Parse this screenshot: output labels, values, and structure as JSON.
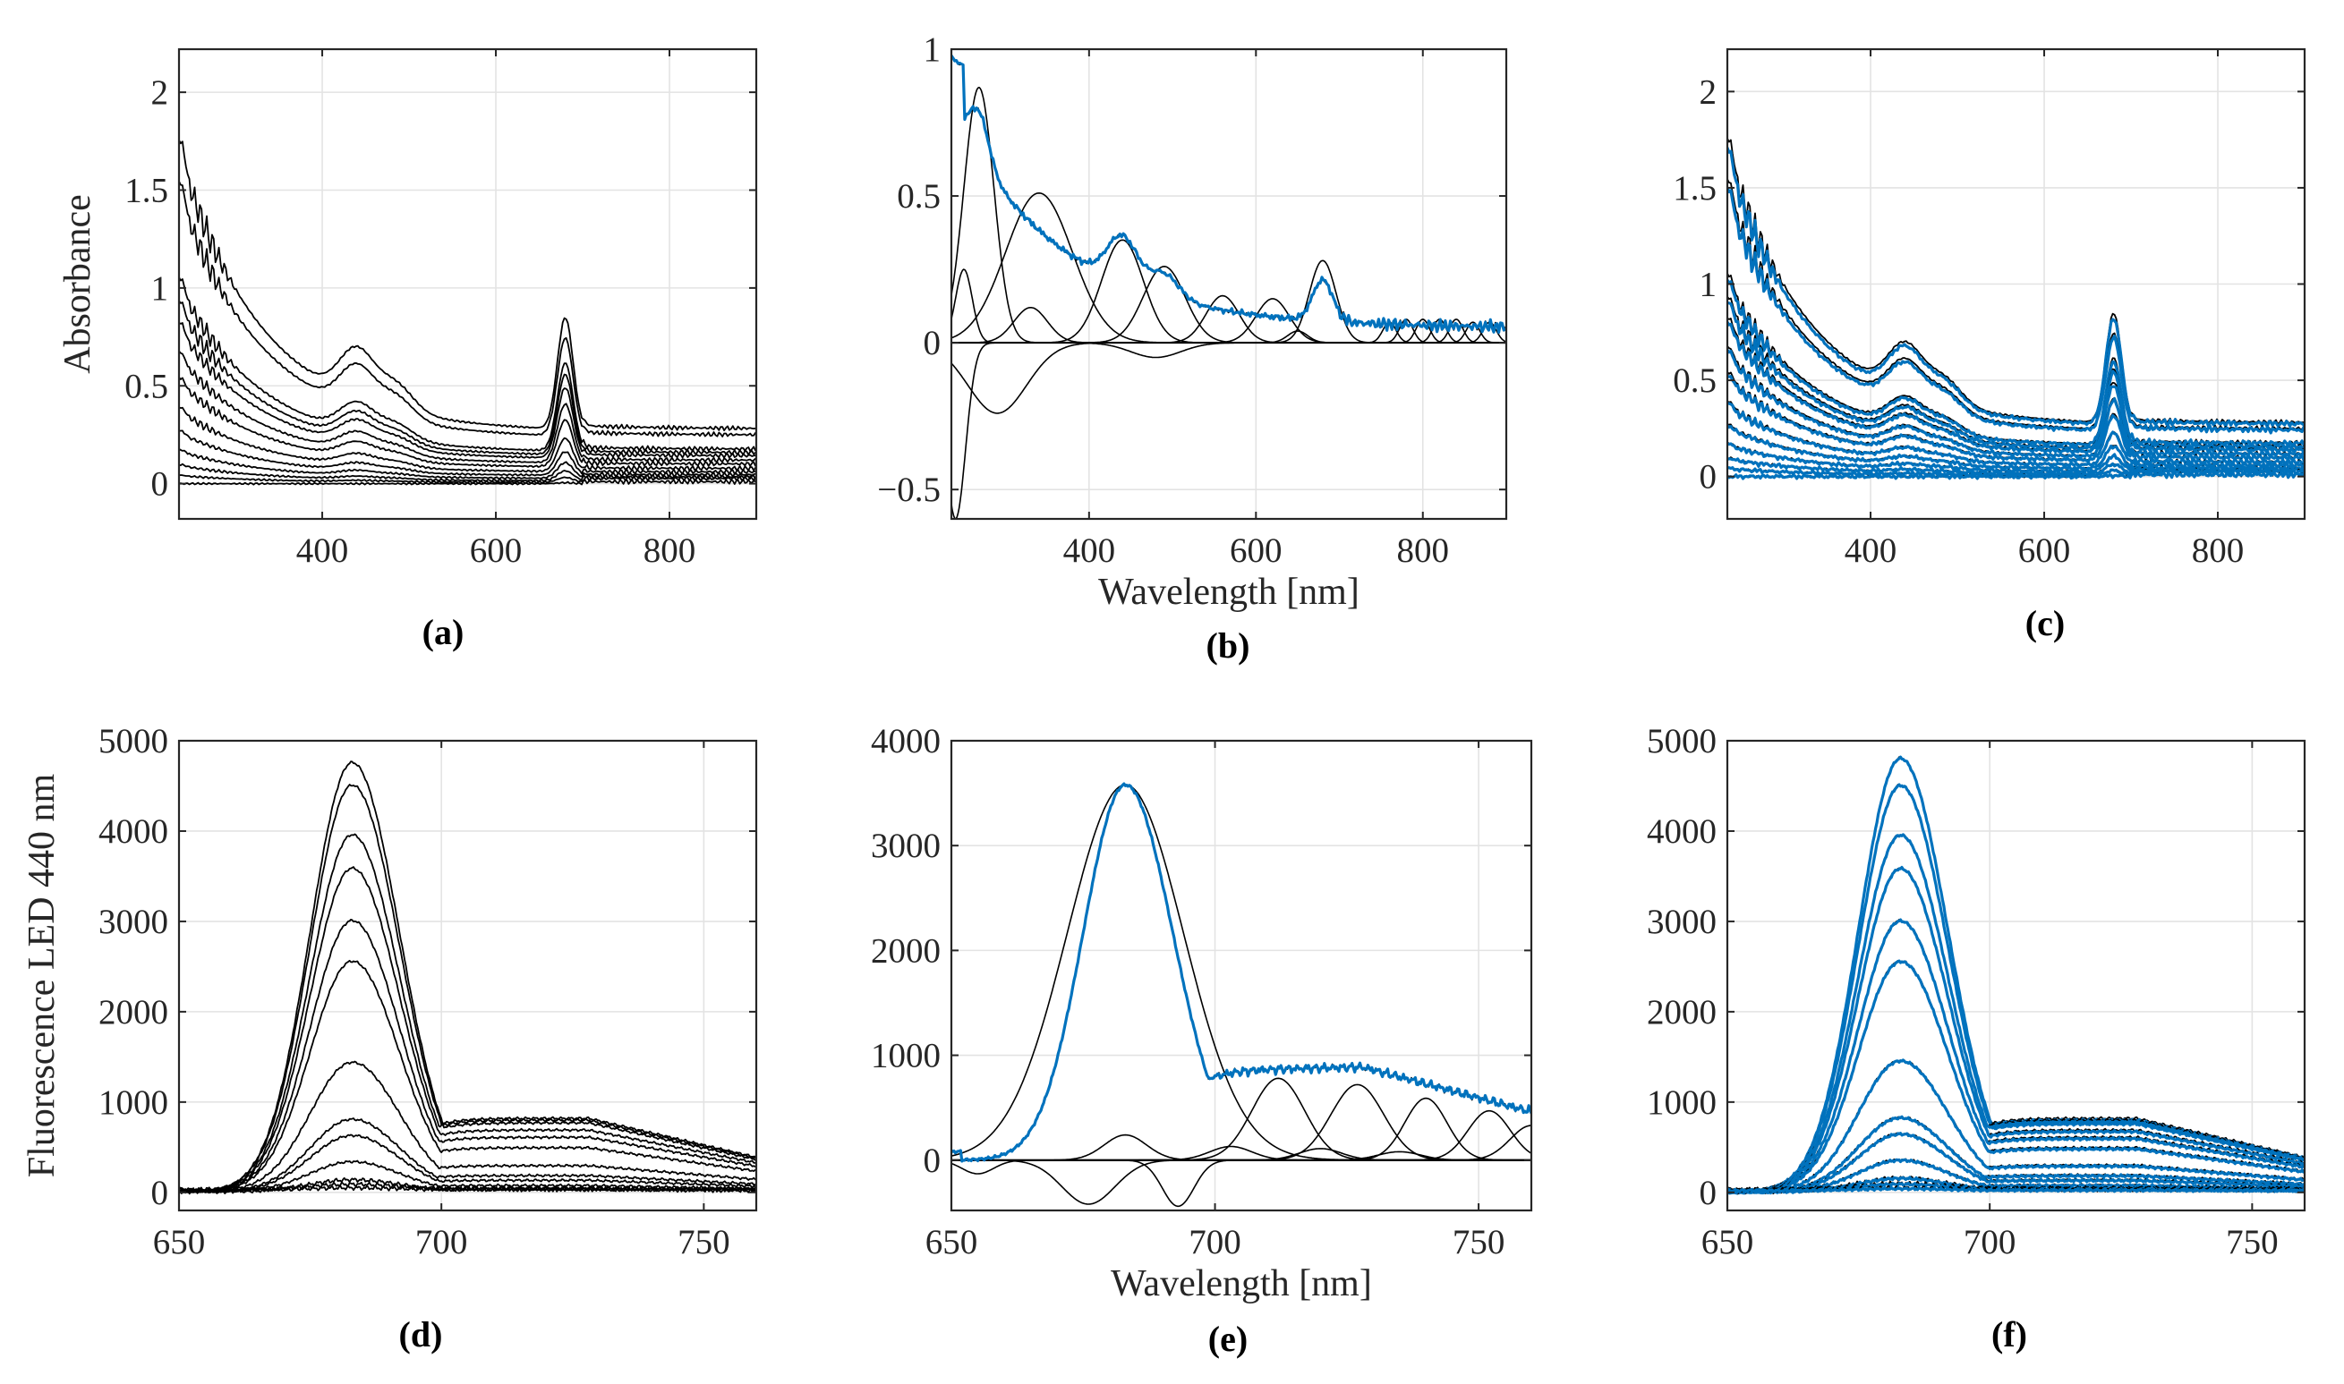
{
  "chart_data": [
    {
      "id": "a",
      "type": "line",
      "panel_label": "(a)",
      "xlabel": "",
      "ylabel": "Absorbance",
      "xlim": [
        235,
        900
      ],
      "ylim": [
        -0.18,
        2.22
      ],
      "xticks": [
        400,
        600,
        800
      ],
      "yticks": [
        0,
        0.5,
        1,
        1.5,
        2
      ],
      "ytick_labels": [
        "0",
        "0.5",
        "1",
        "1.5",
        "2"
      ],
      "grid": true,
      "colors": {
        "measured": "#000000",
        "fit": "#0072BD"
      },
      "series_style": "measured",
      "kind": "absorbance-spectra",
      "levels": [
        1.62,
        1.42,
        0.97,
        0.86,
        0.76,
        0.62,
        0.5,
        0.36,
        0.25,
        0.16,
        0.09,
        0.04,
        0.0
      ],
      "peak680": [
        0.57,
        0.5,
        0.45,
        0.41,
        0.36,
        0.3,
        0.24,
        0.17,
        0.12,
        0.08,
        0.05,
        0.025,
        0.005
      ]
    },
    {
      "id": "b",
      "type": "line",
      "panel_label": "(b)",
      "xlabel": "Wavelength [nm]",
      "ylabel": "",
      "xlim": [
        235,
        900
      ],
      "ylim": [
        -0.6,
        1.0
      ],
      "xticks": [
        400,
        600,
        800
      ],
      "yticks": [
        -0.5,
        0,
        0.5,
        1
      ],
      "ytick_labels": [
        "−0.5",
        "0",
        "0.5",
        "1"
      ],
      "grid": true,
      "colors": {
        "measured": "#000000",
        "fit": "#0072BD"
      },
      "kind": "absorbance-decomposition",
      "components": [
        {
          "center": 268,
          "width": 18,
          "amp": 0.87
        },
        {
          "center": 340,
          "width": 40,
          "amp": 0.51
        },
        {
          "center": 440,
          "width": 25,
          "amp": 0.35
        },
        {
          "center": 490,
          "width": 25,
          "amp": 0.26
        },
        {
          "center": 560,
          "width": 20,
          "amp": 0.16
        },
        {
          "center": 620,
          "width": 20,
          "amp": 0.15
        },
        {
          "center": 680,
          "width": 16,
          "amp": 0.28
        },
        {
          "center": 250,
          "width": 10,
          "amp": 0.25
        },
        {
          "center": 330,
          "width": 20,
          "amp": 0.12
        },
        {
          "center": 290,
          "width": 35,
          "amp": -0.24
        },
        {
          "center": 240,
          "width": 12,
          "amp": -0.6
        },
        {
          "center": 480,
          "width": 30,
          "amp": -0.05
        },
        {
          "center": 650,
          "width": 12,
          "amp": 0.04
        },
        {
          "center": 760,
          "width": 8,
          "amp": 0.07
        },
        {
          "center": 780,
          "width": 8,
          "amp": 0.08
        },
        {
          "center": 800,
          "width": 8,
          "amp": 0.08
        },
        {
          "center": 820,
          "width": 8,
          "amp": 0.08
        },
        {
          "center": 840,
          "width": 8,
          "amp": 0.08
        },
        {
          "center": 860,
          "width": 8,
          "amp": 0.07
        },
        {
          "center": 880,
          "width": 8,
          "amp": 0.07
        }
      ]
    },
    {
      "id": "c",
      "type": "line",
      "panel_label": "(c)",
      "xlabel": "",
      "ylabel": "",
      "xlim": [
        235,
        900
      ],
      "ylim": [
        -0.22,
        2.22
      ],
      "xticks": [
        400,
        600,
        800
      ],
      "yticks": [
        0,
        0.5,
        1,
        1.5,
        2
      ],
      "ytick_labels": [
        "0",
        "0.5",
        "1",
        "1.5",
        "2"
      ],
      "grid": true,
      "colors": {
        "measured": "#000000",
        "fit": "#0072BD"
      },
      "kind": "absorbance-spectra-fit",
      "levels": [
        1.62,
        1.42,
        0.97,
        0.86,
        0.76,
        0.62,
        0.5,
        0.36,
        0.25,
        0.16,
        0.09,
        0.04,
        0.0
      ],
      "peak680": [
        0.57,
        0.5,
        0.45,
        0.41,
        0.36,
        0.3,
        0.24,
        0.17,
        0.12,
        0.08,
        0.05,
        0.025,
        0.005
      ]
    },
    {
      "id": "d",
      "type": "line",
      "panel_label": "(d)",
      "xlabel": "",
      "ylabel": "Fluorescence LED 440 nm",
      "xlim": [
        650,
        760
      ],
      "ylim": [
        -200,
        5000
      ],
      "xticks": [
        650,
        700,
        750
      ],
      "yticks": [
        0,
        1000,
        2000,
        3000,
        4000,
        5000
      ],
      "ytick_labels": [
        "0",
        "1000",
        "2000",
        "3000",
        "4000",
        "5000"
      ],
      "grid": true,
      "colors": {
        "measured": "#000000",
        "fit": "#0072BD"
      },
      "kind": "fluorescence-spectra",
      "peaks": [
        4750,
        4500,
        3950,
        3580,
        3000,
        2550,
        1430,
        800,
        620,
        330,
        130,
        60,
        20
      ],
      "tails": [
        0.16,
        0.18,
        0.2,
        0.19,
        0.2,
        0.19,
        0.2,
        0.22,
        0.2,
        0.2,
        0.2,
        0.2,
        0.2
      ]
    },
    {
      "id": "e",
      "type": "line",
      "panel_label": "(e)",
      "xlabel": "Wavelength [nm]",
      "ylabel": "",
      "xlim": [
        650,
        760
      ],
      "ylim": [
        -480,
        4000
      ],
      "xticks": [
        650,
        700,
        750
      ],
      "yticks": [
        0,
        1000,
        2000,
        3000,
        4000
      ],
      "ytick_labels": [
        "0",
        "1000",
        "2000",
        "3000",
        "4000"
      ],
      "grid": true,
      "colors": {
        "measured": "#000000",
        "fit": "#0072BD"
      },
      "kind": "fluorescence-decomposition",
      "components": [
        {
          "center": 683,
          "width": 11,
          "amp": 3580
        },
        {
          "center": 712,
          "width": 5,
          "amp": 780
        },
        {
          "center": 727,
          "width": 5,
          "amp": 720
        },
        {
          "center": 740,
          "width": 4,
          "amp": 590
        },
        {
          "center": 752,
          "width": 4,
          "amp": 470
        },
        {
          "center": 760,
          "width": 4,
          "amp": 330
        },
        {
          "center": 683,
          "width": 4,
          "amp": 240
        },
        {
          "center": 676,
          "width": 5,
          "amp": -420
        },
        {
          "center": 693,
          "width": 3,
          "amp": -440
        },
        {
          "center": 655,
          "width": 3,
          "amp": -130
        },
        {
          "center": 703,
          "width": 4,
          "amp": 130
        },
        {
          "center": 720,
          "width": 4,
          "amp": 110
        },
        {
          "center": 735,
          "width": 4,
          "amp": 80
        }
      ]
    },
    {
      "id": "f",
      "type": "line",
      "panel_label": "(f)",
      "xlabel": "",
      "ylabel": "",
      "xlim": [
        650,
        760
      ],
      "ylim": [
        -200,
        5000
      ],
      "xticks": [
        650,
        700,
        750
      ],
      "yticks": [
        0,
        1000,
        2000,
        3000,
        4000,
        5000
      ],
      "ytick_labels": [
        "0",
        "1000",
        "2000",
        "3000",
        "4000",
        "5000"
      ],
      "grid": true,
      "colors": {
        "measured": "#000000",
        "fit": "#0072BD"
      },
      "kind": "fluorescence-spectra-fit",
      "peaks": [
        4800,
        4500,
        3950,
        3580,
        3000,
        2550,
        1450,
        820,
        640,
        350,
        150,
        70,
        20
      ],
      "tails": [
        0.16,
        0.18,
        0.2,
        0.19,
        0.2,
        0.19,
        0.2,
        0.22,
        0.2,
        0.2,
        0.2,
        0.2,
        0.2
      ]
    }
  ]
}
